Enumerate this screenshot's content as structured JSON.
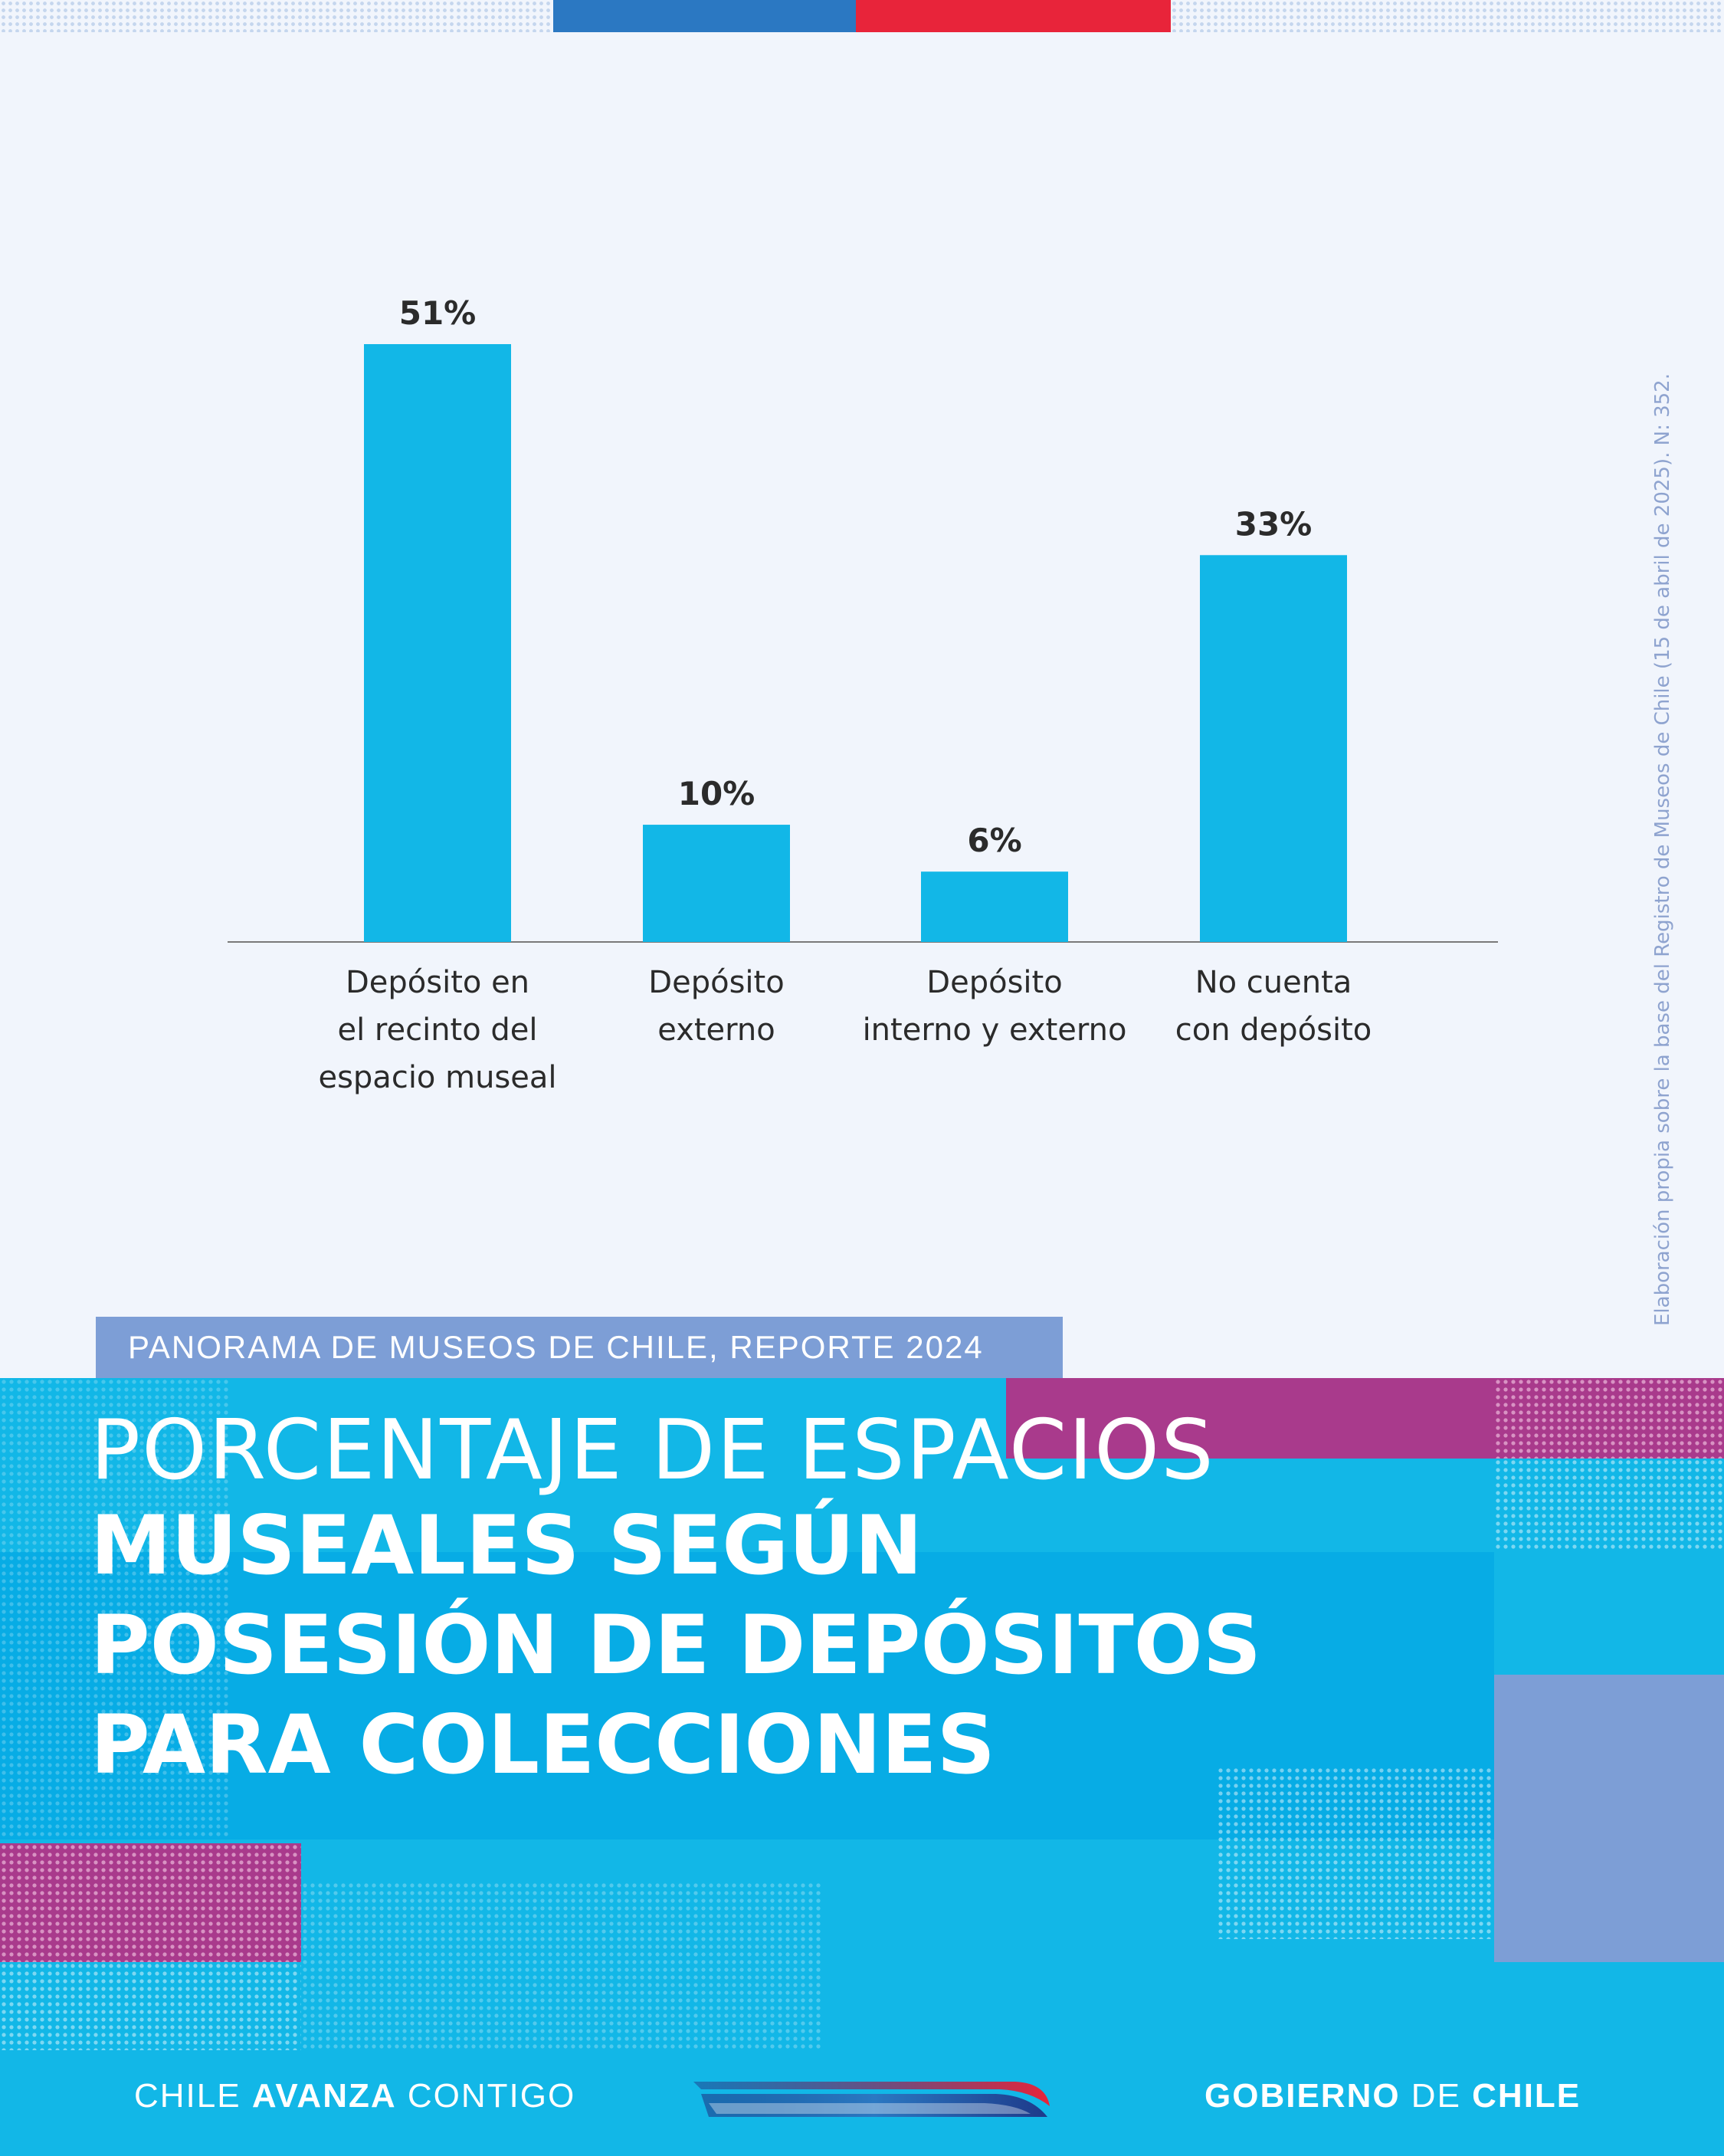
{
  "report_tag": "PANORAMA DE MUSEOS DE CHILE, REPORTE 2024",
  "title": {
    "line1": "PORCENTAJE DE ESPACIOS",
    "line2": "MUSEALES SEGÚN",
    "line3": "POSESIÓN DE DEPÓSITOS",
    "line4": "PARA COLECCIONES"
  },
  "source_note": "Elaboración propia sobre la base del Registro de Museos de Chile (15 de abril de 2025). N: 352.",
  "footer": {
    "left_pre": "CHILE ",
    "left_bold": "AVANZA",
    "left_post": " CONTIGO",
    "right_bold1": "GOBIERNO",
    "right_mid": " DE ",
    "right_bold2": "CHILE"
  },
  "colors": {
    "bar": "#12b7e7",
    "flag_blue": "#2b78c2",
    "flag_red": "#e8243a",
    "magenta": "#a93a8c",
    "lavender": "#7d9ed6"
  },
  "chart_data": {
    "type": "bar",
    "categories": [
      [
        "Depósito en",
        "el recinto del",
        "espacio museal"
      ],
      [
        "Depósito",
        "externo"
      ],
      [
        "Depósito",
        "interno y externo"
      ],
      [
        "No cuenta",
        "con depósito"
      ]
    ],
    "values": [
      51,
      10,
      6,
      33
    ],
    "value_labels": [
      "51%",
      "10%",
      "6%",
      "33%"
    ],
    "unit": "%",
    "ylim": [
      0,
      51
    ],
    "grid": false,
    "legend": "none"
  }
}
